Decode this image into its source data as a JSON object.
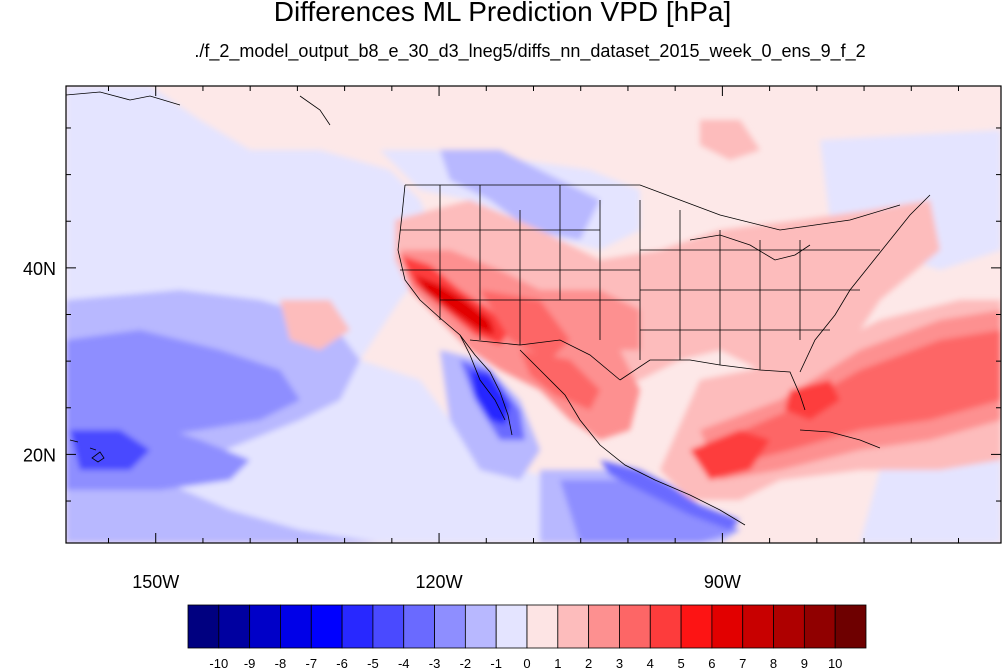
{
  "title": "Differences ML Prediction VPD [hPa]",
  "subtitle": "./f_2_model_output_b8_e_30_d3_lneg5/diffs_nn_dataset_2015_week_0_ens_9_f_2",
  "map": {
    "lon_range": [
      -159.5,
      -60.5
    ],
    "lat_range": [
      10.5,
      59.5
    ],
    "lon_ticks": [
      {
        "value": -150,
        "label": "150W"
      },
      {
        "value": -120,
        "label": "120W"
      },
      {
        "value": -90,
        "label": "90W"
      }
    ],
    "lat_ticks": [
      {
        "value": 40,
        "label": "40N"
      },
      {
        "value": 20,
        "label": "20N"
      }
    ],
    "background_color": "#fde8e8"
  },
  "colorbar": {
    "labels": [
      "-10",
      "-9",
      "-8",
      "-7",
      "-6",
      "-5",
      "-4",
      "-3",
      "-2",
      "-1",
      "0",
      "1",
      "2",
      "3",
      "4",
      "5",
      "6",
      "7",
      "8",
      "9",
      "10"
    ],
    "colors": [
      "#000080",
      "#0000a0",
      "#0000c8",
      "#0000e8",
      "#0000ff",
      "#2828ff",
      "#4a4aff",
      "#6a6aff",
      "#8e8eff",
      "#b8b8ff",
      "#e4e4ff",
      "#fde4e4",
      "#fdbcbc",
      "#fd9090",
      "#fd6666",
      "#fd3c3c",
      "#fd1414",
      "#e20000",
      "#c80000",
      "#ae0000",
      "#900000",
      "#6e0000"
    ]
  }
}
